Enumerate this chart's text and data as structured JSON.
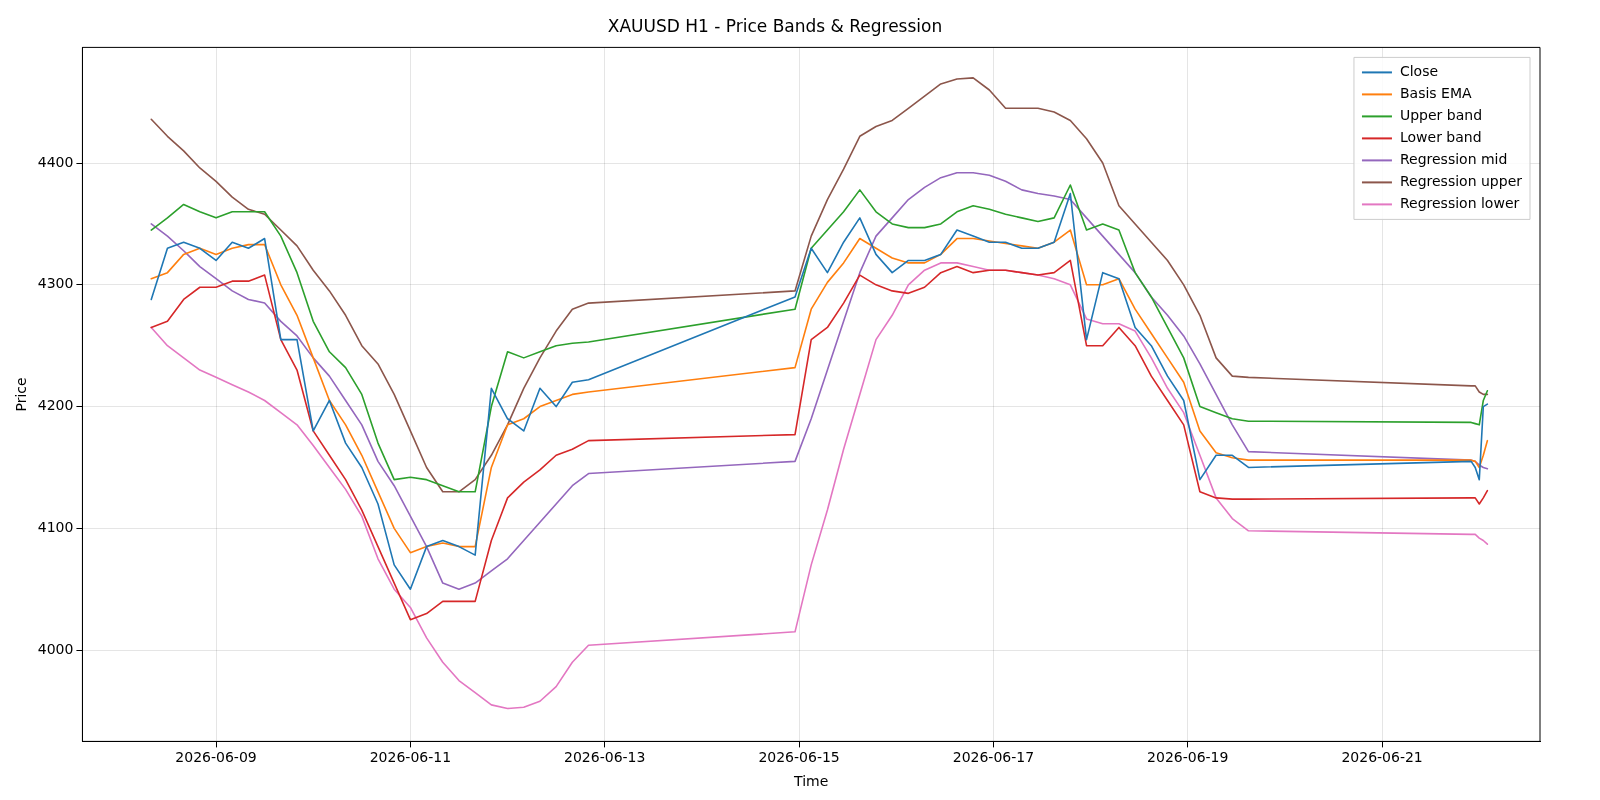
{
  "chart_data": {
    "type": "line",
    "title": "XAUUSD H1 - Price Bands & Regression",
    "xlabel": "Time",
    "ylabel": "Price",
    "x": [
      "2026-06-08T08:00",
      "2026-06-08T12:00",
      "2026-06-08T16:00",
      "2026-06-08T20:00",
      "2026-06-09T00:00",
      "2026-06-09T04:00",
      "2026-06-09T08:00",
      "2026-06-09T12:00",
      "2026-06-09T16:00",
      "2026-06-09T20:00",
      "2026-06-10T00:00",
      "2026-06-10T04:00",
      "2026-06-10T08:00",
      "2026-06-10T12:00",
      "2026-06-10T16:00",
      "2026-06-10T20:00",
      "2026-06-11T00:00",
      "2026-06-11T04:00",
      "2026-06-11T08:00",
      "2026-06-11T12:00",
      "2026-06-11T16:00",
      "2026-06-11T20:00",
      "2026-06-12T00:00",
      "2026-06-12T04:00",
      "2026-06-12T08:00",
      "2026-06-12T12:00",
      "2026-06-12T16:00",
      "2026-06-12T20:00",
      "2026-06-14T23:00",
      "2026-06-15T03:00",
      "2026-06-15T07:00",
      "2026-06-15T11:00",
      "2026-06-15T15:00",
      "2026-06-15T19:00",
      "2026-06-15T23:00",
      "2026-06-16T03:00",
      "2026-06-16T07:00",
      "2026-06-16T11:00",
      "2026-06-16T15:00",
      "2026-06-16T19:00",
      "2026-06-16T23:00",
      "2026-06-17T03:00",
      "2026-06-17T07:00",
      "2026-06-17T11:00",
      "2026-06-17T15:00",
      "2026-06-17T19:00",
      "2026-06-17T23:00",
      "2026-06-18T03:00",
      "2026-06-18T07:00",
      "2026-06-18T11:00",
      "2026-06-18T15:00",
      "2026-06-18T19:00",
      "2026-06-18T23:00",
      "2026-06-19T03:00",
      "2026-06-19T07:00",
      "2026-06-19T11:00",
      "2026-06-19T15:00",
      "2026-06-21T22:00",
      "2026-06-21T23:00",
      "2026-06-22T00:00",
      "2026-06-22T01:00",
      "2026-06-22T02:00"
    ],
    "series": [
      {
        "name": "Close",
        "color": "#1f77b4",
        "values": [
          4288,
          4330,
          4335,
          4330,
          4320,
          4335,
          4330,
          4338,
          4255,
          4255,
          4180,
          4205,
          4170,
          4150,
          4120,
          4070,
          4050,
          4085,
          4090,
          4085,
          4078,
          4215,
          4190,
          4180,
          4215,
          4200,
          4220,
          4222,
          4290,
          4330,
          4310,
          4335,
          4355,
          4325,
          4310,
          4320,
          4320,
          4325,
          4345,
          4340,
          4335,
          4335,
          4330,
          4330,
          4335,
          4375,
          4255,
          4310,
          4305,
          4265,
          4250,
          4225,
          4205,
          4140,
          4160,
          4160,
          4150,
          4155,
          4150,
          4140,
          4200,
          4202
        ]
      },
      {
        "name": "Basis EMA",
        "color": "#ff7f0e",
        "values": [
          4305,
          4310,
          4325,
          4330,
          4325,
          4330,
          4333,
          4333,
          4300,
          4275,
          4240,
          4205,
          4185,
          4160,
          4130,
          4100,
          4080,
          4085,
          4088,
          4085,
          4085,
          4150,
          4185,
          4190,
          4200,
          4205,
          4210,
          4212,
          4232,
          4280,
          4302,
          4318,
          4338,
          4330,
          4322,
          4318,
          4318,
          4325,
          4338,
          4338,
          4336,
          4334,
          4332,
          4330,
          4335,
          4345,
          4300,
          4300,
          4305,
          4280,
          4260,
          4240,
          4220,
          4180,
          4162,
          4158,
          4156,
          4156,
          4155,
          4150,
          4160,
          4172
        ]
      },
      {
        "name": "Upper band",
        "color": "#2ca02c",
        "values": [
          4345,
          4355,
          4366,
          4360,
          4355,
          4360,
          4360,
          4360,
          4340,
          4310,
          4270,
          4245,
          4232,
          4210,
          4170,
          4140,
          4142,
          4140,
          4135,
          4130,
          4130,
          4200,
          4245,
          4240,
          4245,
          4250,
          4252,
          4253,
          4280,
          4330,
          4345,
          4360,
          4378,
          4360,
          4350,
          4347,
          4347,
          4350,
          4360,
          4365,
          4362,
          4358,
          4355,
          4352,
          4355,
          4382,
          4345,
          4350,
          4345,
          4310,
          4290,
          4265,
          4240,
          4200,
          4195,
          4190,
          4188,
          4187,
          4186,
          4185,
          4205,
          4213
        ]
      },
      {
        "name": "Lower band",
        "color": "#d62728",
        "values": [
          4265,
          4270,
          4288,
          4298,
          4298,
          4303,
          4303,
          4308,
          4255,
          4230,
          4180,
          4160,
          4140,
          4115,
          4085,
          4055,
          4025,
          4030,
          4040,
          4040,
          4040,
          4090,
          4125,
          4138,
          4148,
          4160,
          4165,
          4172,
          4177,
          4255,
          4265,
          4285,
          4308,
          4300,
          4295,
          4293,
          4298,
          4310,
          4315,
          4310,
          4312,
          4312,
          4310,
          4308,
          4310,
          4320,
          4250,
          4250,
          4265,
          4250,
          4225,
          4205,
          4185,
          4130,
          4125,
          4124,
          4124,
          4125,
          4125,
          4120,
          4125,
          4131
        ]
      },
      {
        "name": "Regression mid",
        "color": "#9467bd",
        "values": [
          4350,
          4340,
          4328,
          4315,
          4305,
          4295,
          4288,
          4285,
          4270,
          4258,
          4240,
          4225,
          4205,
          4185,
          4155,
          4135,
          4110,
          4085,
          4055,
          4050,
          4055,
          4065,
          4075,
          4090,
          4105,
          4120,
          4135,
          4145,
          4155,
          4190,
          4230,
          4270,
          4310,
          4340,
          4355,
          4370,
          4380,
          4388,
          4392,
          4392,
          4390,
          4385,
          4378,
          4375,
          4373,
          4370,
          4355,
          4340,
          4325,
          4310,
          4290,
          4275,
          4258,
          4235,
          4210,
          4185,
          4163,
          4156,
          4155,
          4152,
          4150,
          4149
        ]
      },
      {
        "name": "Regression upper",
        "color": "#8c564b",
        "values": [
          4436,
          4422,
          4410,
          4396,
          4385,
          4372,
          4362,
          4358,
          4345,
          4332,
          4312,
          4295,
          4275,
          4250,
          4235,
          4210,
          4180,
          4150,
          4130,
          4130,
          4140,
          4160,
          4185,
          4215,
          4240,
          4262,
          4280,
          4285,
          4295,
          4340,
          4370,
          4395,
          4422,
          4430,
          4435,
          4445,
          4455,
          4465,
          4469,
          4470,
          4460,
          4445,
          4445,
          4445,
          4442,
          4435,
          4420,
          4400,
          4365,
          4350,
          4335,
          4320,
          4300,
          4275,
          4240,
          4225,
          4224,
          4217,
          4217,
          4212,
          4210,
          4210
        ]
      },
      {
        "name": "Regression lower",
        "color": "#e377c2",
        "values": [
          4265,
          4250,
          4240,
          4230,
          4224,
          4218,
          4212,
          4205,
          4195,
          4185,
          4168,
          4150,
          4132,
          4110,
          4075,
          4050,
          4035,
          4010,
          3990,
          3975,
          3965,
          3955,
          3952,
          3953,
          3958,
          3970,
          3990,
          4004,
          4015,
          4070,
          4115,
          4165,
          4210,
          4255,
          4275,
          4300,
          4312,
          4318,
          4318,
          4315,
          4312,
          4312,
          4310,
          4308,
          4305,
          4300,
          4272,
          4268,
          4268,
          4262,
          4240,
          4215,
          4195,
          4160,
          4125,
          4108,
          4098,
          4095,
          4095,
          4092,
          4090,
          4087
        ]
      }
    ],
    "xlim": [
      "2026-06-07T15:00",
      "2026-06-22T15:00"
    ],
    "xticks": [
      "2026-06-09",
      "2026-06-11",
      "2026-06-13",
      "2026-06-15",
      "2026-06-17",
      "2026-06-19",
      "2026-06-21"
    ],
    "ylim": [
      3925,
      4495
    ],
    "yticks": [
      4000,
      4100,
      4200,
      4300,
      4400
    ],
    "grid": true,
    "legend": "top right",
    "marker": "none",
    "line_style": "solid"
  }
}
